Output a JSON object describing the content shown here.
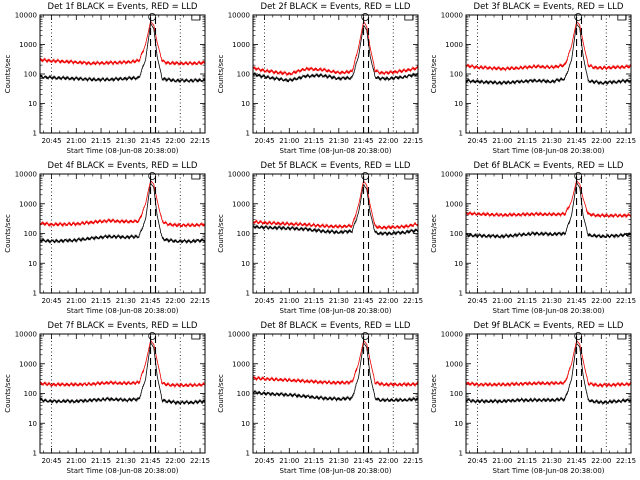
{
  "figure": {
    "background": "#ffffff",
    "colors": {
      "events": "#000000",
      "lld": "#ee0000"
    }
  },
  "chart_data": [
    {
      "type": "line",
      "title": "Det 1f BLACK = Events, RED = LLD",
      "xlabel": "Start Time (08-Jun-08 20:38:00)",
      "ylabel": "Counts/sec",
      "yscale": "log",
      "ylim": [
        1,
        10000
      ],
      "xlim": [
        "20:38",
        "22:18"
      ],
      "xticks": [
        "20:45",
        "21:00",
        "21:15",
        "21:30",
        "21:45",
        "22:00",
        "22:15"
      ],
      "yticks": [
        "1",
        "10",
        "100",
        "1000",
        "10000"
      ],
      "vlines_dotted": [
        "20:45",
        "22:03"
      ],
      "vlines_dashed": [
        "21:45",
        "21:48"
      ],
      "series": [
        {
          "color": "#000000",
          "x": [
            "20:38",
            "20:45",
            "21:00",
            "21:10",
            "21:20",
            "21:30",
            "21:38",
            "21:42",
            "21:45",
            "21:47",
            "21:49",
            "21:52",
            "21:55",
            "22:00",
            "22:10",
            "22:18"
          ],
          "y": [
            80,
            75,
            70,
            65,
            65,
            70,
            75,
            300,
            5000,
            3500,
            400,
            70,
            65,
            60,
            60,
            62
          ]
        },
        {
          "color": "#ee0000",
          "x": [
            "20:38",
            "20:45",
            "21:00",
            "21:10",
            "21:20",
            "21:30",
            "21:38",
            "21:42",
            "21:45",
            "21:47",
            "21:49",
            "21:52",
            "21:55",
            "22:00",
            "22:10",
            "22:18"
          ],
          "y": [
            300,
            280,
            250,
            230,
            240,
            250,
            280,
            1000,
            6000,
            4500,
            1200,
            280,
            240,
            230,
            230,
            240
          ]
        }
      ]
    },
    {
      "type": "line",
      "title": "Det 2f BLACK = Events, RED = LLD",
      "xlabel": "Start Time (08-Jun-08 20:38:00)",
      "ylabel": "Counts/sec",
      "yscale": "log",
      "ylim": [
        1,
        10000
      ],
      "xlim": [
        "20:38",
        "22:18"
      ],
      "xticks": [
        "20:45",
        "21:00",
        "21:15",
        "21:30",
        "21:45",
        "22:00",
        "22:15"
      ],
      "yticks": [
        "1",
        "10",
        "100",
        "1000",
        "10000"
      ],
      "vlines_dotted": [
        "20:45",
        "22:03"
      ],
      "vlines_dashed": [
        "21:45",
        "21:48"
      ],
      "series": [
        {
          "color": "#000000",
          "x": [
            "20:38",
            "20:45",
            "21:00",
            "21:10",
            "21:20",
            "21:30",
            "21:38",
            "21:42",
            "21:45",
            "21:47",
            "21:49",
            "21:52",
            "21:55",
            "22:00",
            "22:10",
            "22:18"
          ],
          "y": [
            100,
            80,
            60,
            85,
            90,
            70,
            75,
            400,
            4500,
            3000,
            400,
            80,
            70,
            70,
            80,
            100
          ]
        },
        {
          "color": "#ee0000",
          "x": [
            "20:38",
            "20:45",
            "21:00",
            "21:10",
            "21:20",
            "21:30",
            "21:38",
            "21:42",
            "21:45",
            "21:47",
            "21:49",
            "21:52",
            "21:55",
            "22:00",
            "22:10",
            "22:18"
          ],
          "y": [
            160,
            130,
            100,
            150,
            140,
            110,
            120,
            800,
            6000,
            4000,
            800,
            130,
            110,
            110,
            130,
            160
          ]
        }
      ]
    },
    {
      "type": "line",
      "title": "Det 3f BLACK = Events, RED = LLD",
      "xlabel": "Start Time (08-Jun-08 20:38:00)",
      "ylabel": "Counts/sec",
      "yscale": "log",
      "ylim": [
        1,
        10000
      ],
      "xlim": [
        "20:38",
        "22:18"
      ],
      "xticks": [
        "20:45",
        "21:00",
        "21:15",
        "21:30",
        "21:45",
        "22:00",
        "22:15"
      ],
      "yticks": [
        "1",
        "10",
        "100",
        "1000",
        "10000"
      ],
      "vlines_dotted": [
        "20:45",
        "22:03"
      ],
      "vlines_dashed": [
        "21:45",
        "21:48"
      ],
      "series": [
        {
          "color": "#000000",
          "x": [
            "20:38",
            "20:45",
            "21:00",
            "21:10",
            "21:20",
            "21:30",
            "21:38",
            "21:42",
            "21:45",
            "21:47",
            "21:49",
            "21:52",
            "21:55",
            "22:00",
            "22:10",
            "22:18"
          ],
          "y": [
            60,
            55,
            50,
            55,
            60,
            55,
            70,
            300,
            5000,
            3500,
            400,
            60,
            55,
            50,
            55,
            60
          ]
        },
        {
          "color": "#ee0000",
          "x": [
            "20:38",
            "20:45",
            "21:00",
            "21:10",
            "21:20",
            "21:30",
            "21:38",
            "21:42",
            "21:45",
            "21:47",
            "21:49",
            "21:52",
            "21:55",
            "22:00",
            "22:10",
            "22:18"
          ],
          "y": [
            190,
            170,
            150,
            160,
            180,
            170,
            200,
            900,
            6000,
            4500,
            1200,
            200,
            170,
            160,
            170,
            180
          ]
        }
      ]
    },
    {
      "type": "line",
      "title": "Det 4f BLACK = Events, RED = LLD",
      "xlabel": "Start Time (08-Jun-08 20:38:00)",
      "ylabel": "Counts/sec",
      "yscale": "log",
      "ylim": [
        1,
        10000
      ],
      "xlim": [
        "20:38",
        "22:18"
      ],
      "xticks": [
        "20:45",
        "21:00",
        "21:15",
        "21:30",
        "21:45",
        "22:00",
        "22:15"
      ],
      "yticks": [
        "1",
        "10",
        "100",
        "1000",
        "10000"
      ],
      "vlines_dotted": [
        "20:45",
        "22:03"
      ],
      "vlines_dashed": [
        "21:45",
        "21:48"
      ],
      "series": [
        {
          "color": "#000000",
          "x": [
            "20:38",
            "20:45",
            "21:00",
            "21:10",
            "21:20",
            "21:30",
            "21:38",
            "21:42",
            "21:45",
            "21:47",
            "21:49",
            "21:52",
            "21:55",
            "22:00",
            "22:10",
            "22:18"
          ],
          "y": [
            60,
            55,
            60,
            70,
            80,
            75,
            80,
            300,
            5000,
            3500,
            400,
            70,
            60,
            55,
            55,
            60
          ]
        },
        {
          "color": "#ee0000",
          "x": [
            "20:38",
            "20:45",
            "21:00",
            "21:10",
            "21:20",
            "21:30",
            "21:38",
            "21:42",
            "21:45",
            "21:47",
            "21:49",
            "21:52",
            "21:55",
            "22:00",
            "22:10",
            "22:18"
          ],
          "y": [
            220,
            200,
            210,
            240,
            270,
            250,
            260,
            1000,
            6000,
            4500,
            1300,
            260,
            210,
            190,
            190,
            200
          ]
        }
      ]
    },
    {
      "type": "line",
      "title": "Det 5f BLACK = Events, RED = LLD",
      "xlabel": "Start Time (08-Jun-08 20:38:00)",
      "ylabel": "Counts/sec",
      "yscale": "log",
      "ylim": [
        1,
        10000
      ],
      "xlim": [
        "20:38",
        "22:18"
      ],
      "xticks": [
        "20:45",
        "21:00",
        "21:15",
        "21:30",
        "21:45",
        "22:00",
        "22:15"
      ],
      "yticks": [
        "1",
        "10",
        "100",
        "1000",
        "10000"
      ],
      "vlines_dotted": [
        "20:45",
        "22:03"
      ],
      "vlines_dashed": [
        "21:45",
        "21:48"
      ],
      "series": [
        {
          "color": "#000000",
          "x": [
            "20:38",
            "20:45",
            "21:00",
            "21:10",
            "21:20",
            "21:30",
            "21:38",
            "21:42",
            "21:45",
            "21:47",
            "21:49",
            "21:52",
            "21:55",
            "22:00",
            "22:10",
            "22:18"
          ],
          "y": [
            170,
            160,
            150,
            140,
            120,
            110,
            120,
            500,
            4500,
            3000,
            500,
            110,
            100,
            100,
            110,
            130
          ]
        },
        {
          "color": "#ee0000",
          "x": [
            "20:38",
            "20:45",
            "21:00",
            "21:10",
            "21:20",
            "21:30",
            "21:38",
            "21:42",
            "21:45",
            "21:47",
            "21:49",
            "21:52",
            "21:55",
            "22:00",
            "22:10",
            "22:18"
          ],
          "y": [
            250,
            230,
            210,
            200,
            180,
            170,
            180,
            900,
            6000,
            4000,
            900,
            170,
            160,
            160,
            170,
            210
          ]
        }
      ]
    },
    {
      "type": "line",
      "title": "Det 6f BLACK = Events, RED = LLD",
      "xlabel": "Start Time (08-Jun-08 20:38:00)",
      "ylabel": "Counts/sec",
      "yscale": "log",
      "ylim": [
        1,
        10000
      ],
      "xlim": [
        "20:38",
        "22:18"
      ],
      "xticks": [
        "20:45",
        "21:00",
        "21:15",
        "21:30",
        "21:45",
        "22:00",
        "22:15"
      ],
      "yticks": [
        "1",
        "10",
        "100",
        "1000",
        "10000"
      ],
      "vlines_dotted": [
        "20:45",
        "22:03"
      ],
      "vlines_dashed": [
        "21:45",
        "21:48"
      ],
      "series": [
        {
          "color": "#000000",
          "x": [
            "20:38",
            "20:45",
            "21:00",
            "21:10",
            "21:20",
            "21:30",
            "21:38",
            "21:42",
            "21:45",
            "21:47",
            "21:49",
            "21:52",
            "21:55",
            "22:00",
            "22:10",
            "22:18"
          ],
          "y": [
            90,
            85,
            80,
            90,
            100,
            95,
            100,
            400,
            5000,
            3500,
            400,
            90,
            85,
            80,
            85,
            95
          ]
        },
        {
          "color": "#ee0000",
          "x": [
            "20:38",
            "20:45",
            "21:00",
            "21:10",
            "21:20",
            "21:30",
            "21:38",
            "21:42",
            "21:45",
            "21:47",
            "21:49",
            "21:52",
            "21:55",
            "22:00",
            "22:10",
            "22:18"
          ],
          "y": [
            480,
            450,
            420,
            430,
            450,
            440,
            450,
            1200,
            6000,
            4500,
            1500,
            450,
            420,
            400,
            400,
            410
          ]
        }
      ]
    },
    {
      "type": "line",
      "title": "Det 7f BLACK = Events, RED = LLD",
      "xlabel": "Start Time (08-Jun-08 20:38:00)",
      "ylabel": "Counts/sec",
      "yscale": "log",
      "ylim": [
        1,
        10000
      ],
      "xlim": [
        "20:38",
        "22:18"
      ],
      "xticks": [
        "20:45",
        "21:00",
        "21:15",
        "21:30",
        "21:45",
        "22:00",
        "22:15"
      ],
      "yticks": [
        "1",
        "10",
        "100",
        "1000",
        "10000"
      ],
      "vlines_dotted": [
        "20:45",
        "22:03"
      ],
      "vlines_dashed": [
        "21:45",
        "21:48"
      ],
      "series": [
        {
          "color": "#000000",
          "x": [
            "20:38",
            "20:45",
            "21:00",
            "21:10",
            "21:20",
            "21:30",
            "21:38",
            "21:42",
            "21:45",
            "21:47",
            "21:49",
            "21:52",
            "21:55",
            "22:00",
            "22:10",
            "22:18"
          ],
          "y": [
            60,
            55,
            55,
            60,
            65,
            60,
            65,
            300,
            5000,
            3500,
            400,
            60,
            55,
            50,
            50,
            55
          ]
        },
        {
          "color": "#ee0000",
          "x": [
            "20:38",
            "20:45",
            "21:00",
            "21:10",
            "21:20",
            "21:30",
            "21:38",
            "21:42",
            "21:45",
            "21:47",
            "21:49",
            "21:52",
            "21:55",
            "22:00",
            "22:10",
            "22:18"
          ],
          "y": [
            220,
            200,
            200,
            210,
            230,
            220,
            230,
            1000,
            6000,
            4500,
            1300,
            220,
            200,
            190,
            190,
            200
          ]
        }
      ]
    },
    {
      "type": "line",
      "title": "Det 8f BLACK = Events, RED = LLD",
      "xlabel": "Start Time (08-Jun-08 20:38:00)",
      "ylabel": "Counts/sec",
      "yscale": "log",
      "ylim": [
        1,
        10000
      ],
      "xlim": [
        "20:38",
        "22:18"
      ],
      "xticks": [
        "20:45",
        "21:00",
        "21:15",
        "21:30",
        "21:45",
        "22:00",
        "22:15"
      ],
      "yticks": [
        "1",
        "10",
        "100",
        "1000",
        "10000"
      ],
      "vlines_dotted": [
        "20:45",
        "22:03"
      ],
      "vlines_dashed": [
        "21:45",
        "21:48"
      ],
      "series": [
        {
          "color": "#000000",
          "x": [
            "20:38",
            "20:45",
            "21:00",
            "21:10",
            "21:20",
            "21:30",
            "21:38",
            "21:42",
            "21:45",
            "21:47",
            "21:49",
            "21:52",
            "21:55",
            "22:00",
            "22:10",
            "22:18"
          ],
          "y": [
            110,
            100,
            90,
            80,
            70,
            65,
            70,
            350,
            5000,
            3500,
            400,
            70,
            60,
            60,
            60,
            65
          ]
        },
        {
          "color": "#ee0000",
          "x": [
            "20:38",
            "20:45",
            "21:00",
            "21:10",
            "21:20",
            "21:30",
            "21:38",
            "21:42",
            "21:45",
            "21:47",
            "21:49",
            "21:52",
            "21:55",
            "22:00",
            "22:10",
            "22:18"
          ],
          "y": [
            330,
            310,
            280,
            260,
            240,
            230,
            240,
            1000,
            6000,
            4500,
            1300,
            230,
            210,
            200,
            200,
            210
          ]
        }
      ]
    },
    {
      "type": "line",
      "title": "Det 9f BLACK = Events, RED = LLD",
      "xlabel": "Start Time (08-Jun-08 20:38:00)",
      "ylabel": "Counts/sec",
      "yscale": "log",
      "ylim": [
        1,
        10000
      ],
      "xlim": [
        "20:38",
        "22:18"
      ],
      "xticks": [
        "20:45",
        "21:00",
        "21:15",
        "21:30",
        "21:45",
        "22:00",
        "22:15"
      ],
      "yticks": [
        "1",
        "10",
        "100",
        "1000",
        "10000"
      ],
      "vlines_dotted": [
        "20:45",
        "22:03"
      ],
      "vlines_dashed": [
        "21:45",
        "21:48"
      ],
      "series": [
        {
          "color": "#000000",
          "x": [
            "20:38",
            "20:45",
            "21:00",
            "21:10",
            "21:20",
            "21:30",
            "21:38",
            "21:42",
            "21:45",
            "21:47",
            "21:49",
            "21:52",
            "21:55",
            "22:00",
            "22:10",
            "22:18"
          ],
          "y": [
            60,
            55,
            55,
            60,
            60,
            60,
            65,
            300,
            5000,
            3500,
            400,
            60,
            55,
            50,
            55,
            60
          ]
        },
        {
          "color": "#ee0000",
          "x": [
            "20:38",
            "20:45",
            "21:00",
            "21:10",
            "21:20",
            "21:30",
            "21:38",
            "21:42",
            "21:45",
            "21:47",
            "21:49",
            "21:52",
            "21:55",
            "22:00",
            "22:10",
            "22:18"
          ],
          "y": [
            220,
            200,
            200,
            210,
            220,
            220,
            230,
            1000,
            6000,
            4500,
            1300,
            220,
            200,
            190,
            200,
            210
          ]
        }
      ]
    }
  ]
}
